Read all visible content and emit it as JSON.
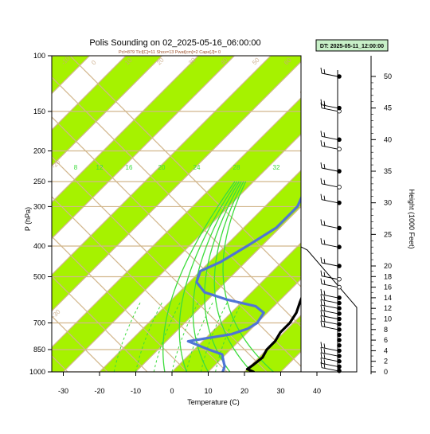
{
  "chart_data": {
    "type": "line",
    "title": "Polis Sounding on 02_2025-05-16_06:00:00",
    "subtitle": "Pcl=879 Tlcl[C]=11 Shox=13 Pwat[cm]=2 Cape[J]= 0",
    "xlabel": "Temperature (C)",
    "ylabel": "P (hPa)",
    "y2label": "Height (1000 Feet)",
    "date_box": "DT: 2025-05-11_12:00:00",
    "xlim": [
      -33,
      51
    ],
    "ylim": [
      1020,
      100
    ],
    "y_scale": "log",
    "x_ticks": [
      -30,
      -20,
      -10,
      0,
      10,
      20,
      30,
      40
    ],
    "x_tick_labels": [
      "-30",
      "-20",
      "-10",
      "0",
      "10",
      "20",
      "30",
      "40"
    ],
    "p_ticks": [
      100,
      150,
      200,
      250,
      300,
      400,
      500,
      700,
      850,
      1000
    ],
    "p_tick_labels": [
      "100",
      "150",
      "200",
      "250",
      "300",
      "400",
      "500",
      "700",
      "850",
      "1000"
    ],
    "height_ticks": [
      0,
      2,
      4,
      6,
      8,
      10,
      12,
      14,
      16,
      18,
      20,
      25,
      30,
      35,
      40,
      45,
      50
    ],
    "height_tick_labels": [
      "0",
      "2",
      "4",
      "6",
      "8",
      "10",
      "12",
      "14",
      "16",
      "18",
      "20",
      "25",
      "30",
      "35",
      "40",
      "45",
      "50"
    ],
    "isotherm_labels": [
      "-30",
      "-20",
      "-10",
      "0",
      "10",
      "20",
      "30",
      "40",
      "50",
      "60",
      "80",
      "100",
      "120",
      "140",
      "160"
    ],
    "mixing_ratio_labels": [
      "8",
      "12",
      "16",
      "20",
      "24",
      "28",
      "32"
    ],
    "series": [
      {
        "kind": "temperature",
        "color": "#000000",
        "points": [
          [
            22.5,
            1000
          ],
          [
            20,
            980
          ],
          [
            20.5,
            950
          ],
          [
            21,
            900
          ],
          [
            20,
            850
          ],
          [
            20,
            800
          ],
          [
            19,
            750
          ],
          [
            19,
            700
          ],
          [
            18,
            650
          ],
          [
            16,
            600
          ],
          [
            14,
            550
          ],
          [
            11,
            500
          ],
          [
            6,
            450
          ],
          [
            2,
            400
          ],
          [
            -3,
            350
          ],
          [
            -6,
            300
          ],
          [
            -10,
            250
          ],
          [
            -13,
            200
          ],
          [
            -12,
            180
          ],
          [
            -8,
            150
          ],
          [
            0,
            125
          ],
          [
            8,
            105
          ],
          [
            12,
            100
          ]
        ]
      },
      {
        "kind": "dewpoint",
        "color": "#4f74d6",
        "points": [
          [
            14,
            1000
          ],
          [
            13,
            960
          ],
          [
            11,
            920
          ],
          [
            9,
            880
          ],
          [
            4,
            850
          ],
          [
            -4,
            800
          ],
          [
            6,
            760
          ],
          [
            9,
            730
          ],
          [
            10,
            700
          ],
          [
            9,
            650
          ],
          [
            5,
            620
          ],
          [
            -5,
            590
          ],
          [
            -13,
            560
          ],
          [
            -18,
            520
          ],
          [
            -20,
            480
          ],
          [
            -17,
            450
          ],
          [
            -14,
            400
          ],
          [
            -11,
            350
          ],
          [
            -11,
            300
          ],
          [
            -14,
            260
          ],
          [
            -17,
            240
          ],
          [
            -18,
            220
          ],
          [
            -18,
            190
          ],
          [
            -17,
            170
          ],
          [
            -16,
            150
          ],
          [
            -16,
            130
          ],
          [
            -13,
            115
          ],
          [
            -7,
            100
          ]
        ]
      }
    ],
    "station_levels": [
      {
        "height_kft": 0.2,
        "filled": true,
        "barb": true
      },
      {
        "height_kft": 1.0,
        "filled": true,
        "barb": true
      },
      {
        "height_kft": 2.0,
        "filled": true,
        "barb": true
      },
      {
        "height_kft": 3.0,
        "filled": true,
        "barb": true
      },
      {
        "height_kft": 4.0,
        "filled": true,
        "barb": true
      },
      {
        "height_kft": 5.0,
        "filled": true,
        "barb": false
      },
      {
        "height_kft": 6.0,
        "filled": true,
        "barb": false
      },
      {
        "height_kft": 7.0,
        "filled": true,
        "barb": false
      },
      {
        "height_kft": 8.0,
        "filled": true,
        "barb": true
      },
      {
        "height_kft": 9.0,
        "filled": true,
        "barb": true
      },
      {
        "height_kft": 10.0,
        "filled": true,
        "barb": true
      },
      {
        "height_kft": 11.0,
        "filled": true,
        "barb": true
      },
      {
        "height_kft": 12.0,
        "filled": true,
        "barb": true
      },
      {
        "height_kft": 13.0,
        "filled": true,
        "barb": true
      },
      {
        "height_kft": 14.0,
        "filled": true,
        "barb": true
      },
      {
        "height_kft": 16.0,
        "filled": false,
        "barb": true
      },
      {
        "height_kft": 17.5,
        "filled": false,
        "barb": true
      },
      {
        "height_kft": 20.0,
        "filled": true,
        "barb": true
      },
      {
        "height_kft": 23.0,
        "filled": true,
        "barb": true
      },
      {
        "height_kft": 26.0,
        "filled": true,
        "barb": true
      },
      {
        "height_kft": 30.0,
        "filled": true,
        "barb": true
      },
      {
        "height_kft": 32.5,
        "filled": false,
        "barb": true
      },
      {
        "height_kft": 35.0,
        "filled": true,
        "barb": true
      },
      {
        "height_kft": 38.5,
        "filled": false,
        "barb": true
      },
      {
        "height_kft": 40.0,
        "filled": true,
        "barb": true
      },
      {
        "height_kft": 44.5,
        "filled": false,
        "barb": true
      },
      {
        "height_kft": 45.0,
        "filled": true,
        "barb": true
      },
      {
        "height_kft": 50.0,
        "filled": true,
        "barb": true
      }
    ]
  },
  "colors": {
    "band": "#a6f200",
    "isotherm": "#d2b68c",
    "mixing_ratio": "#3cdc3c",
    "temperature": "#000000",
    "dewpoint": "#4f74d6",
    "date_box_fill": "#c8f0c8",
    "isotherm_label": "#c8a882"
  }
}
